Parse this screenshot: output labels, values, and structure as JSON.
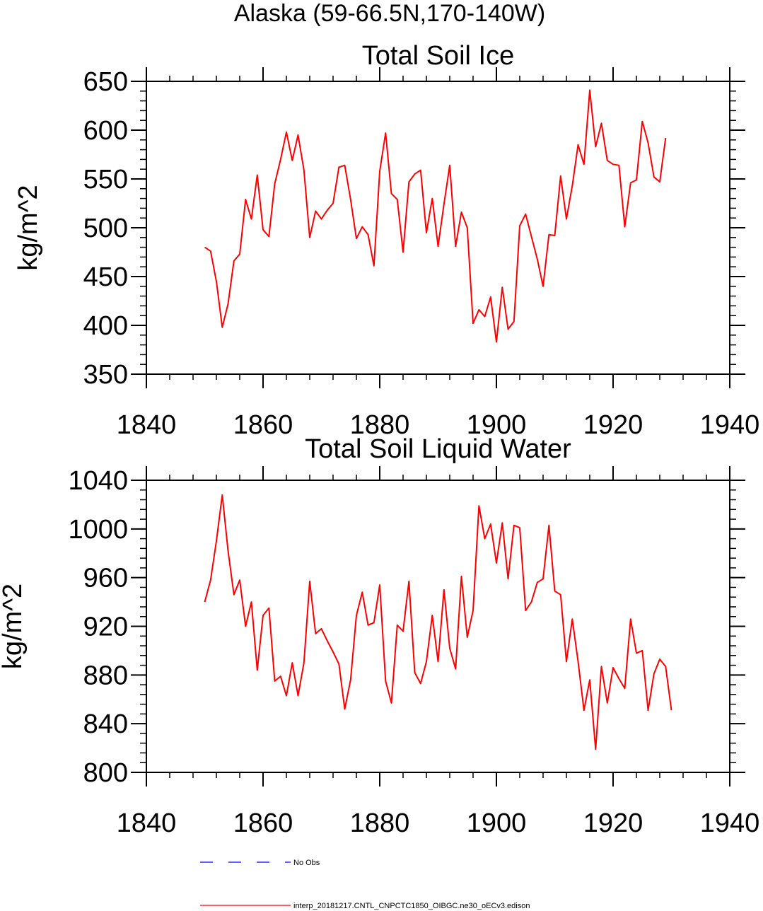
{
  "figure_title": "Alaska (59-66.5N,170-140W)",
  "chart_data": [
    {
      "type": "line",
      "title": "Total Soil Ice",
      "xlabel": "",
      "ylabel": "kg/m^2",
      "xlim": [
        1840,
        1940
      ],
      "ylim": [
        350,
        650
      ],
      "xticks": [
        1840,
        1860,
        1880,
        1900,
        1920,
        1940
      ],
      "yticks": [
        350,
        400,
        450,
        500,
        550,
        600,
        650
      ],
      "color": "#ff0000",
      "x_start": 1850,
      "series": [
        {
          "values": [
            480,
            476,
            445,
            398,
            422,
            466,
            473,
            529,
            509,
            554,
            498,
            491,
            545,
            570,
            598,
            569,
            595,
            559,
            490,
            517,
            509,
            518,
            525,
            562,
            564,
            529,
            489,
            501,
            493,
            461,
            558,
            597,
            535,
            529,
            475,
            547,
            555,
            559,
            495,
            530,
            481,
            524,
            564,
            481,
            516,
            500,
            402,
            416,
            409,
            429,
            383,
            439,
            396,
            404,
            502,
            514,
            491,
            468,
            440,
            493,
            492,
            553,
            509,
            543,
            585,
            565,
            641,
            583,
            607,
            569,
            565,
            564,
            501,
            546,
            549,
            609,
            587,
            552,
            547,
            592
          ]
        }
      ]
    },
    {
      "type": "line",
      "title": "Total Soil Liquid Water",
      "xlabel": "",
      "ylabel": "kg/m^2",
      "xlim": [
        1840,
        1940
      ],
      "ylim": [
        800,
        1040
      ],
      "xticks": [
        1840,
        1860,
        1880,
        1900,
        1920,
        1940
      ],
      "yticks": [
        800,
        840,
        880,
        920,
        960,
        1000,
        1040
      ],
      "color": "#ff0000",
      "x_start": 1850,
      "series": [
        {
          "values": [
            940,
            958,
            990,
            1028,
            982,
            946,
            958,
            920,
            940,
            884,
            929,
            935,
            875,
            879,
            863,
            890,
            863,
            890,
            957,
            914,
            918,
            908,
            899,
            889,
            852,
            876,
            929,
            948,
            921,
            923,
            954,
            875,
            857,
            921,
            916,
            957,
            882,
            873,
            891,
            929,
            891,
            950,
            902,
            885,
            961,
            911,
            933,
            1019,
            992,
            1004,
            972,
            1005,
            959,
            1003,
            1001,
            933,
            940,
            956,
            959,
            1003,
            949,
            946,
            891,
            926,
            891,
            851,
            876,
            819,
            887,
            857,
            886,
            877,
            869,
            926,
            898,
            900,
            851,
            881,
            893,
            887,
            851
          ]
        }
      ]
    }
  ],
  "legend": [
    {
      "label": "No Obs",
      "color": "#0000ff",
      "style": "dashed"
    },
    {
      "label": "interp_20181217.CNTL_CNPCTC1850_OIBGC.ne30_oECv3.edison",
      "color": "#ff0000",
      "style": "solid"
    }
  ]
}
